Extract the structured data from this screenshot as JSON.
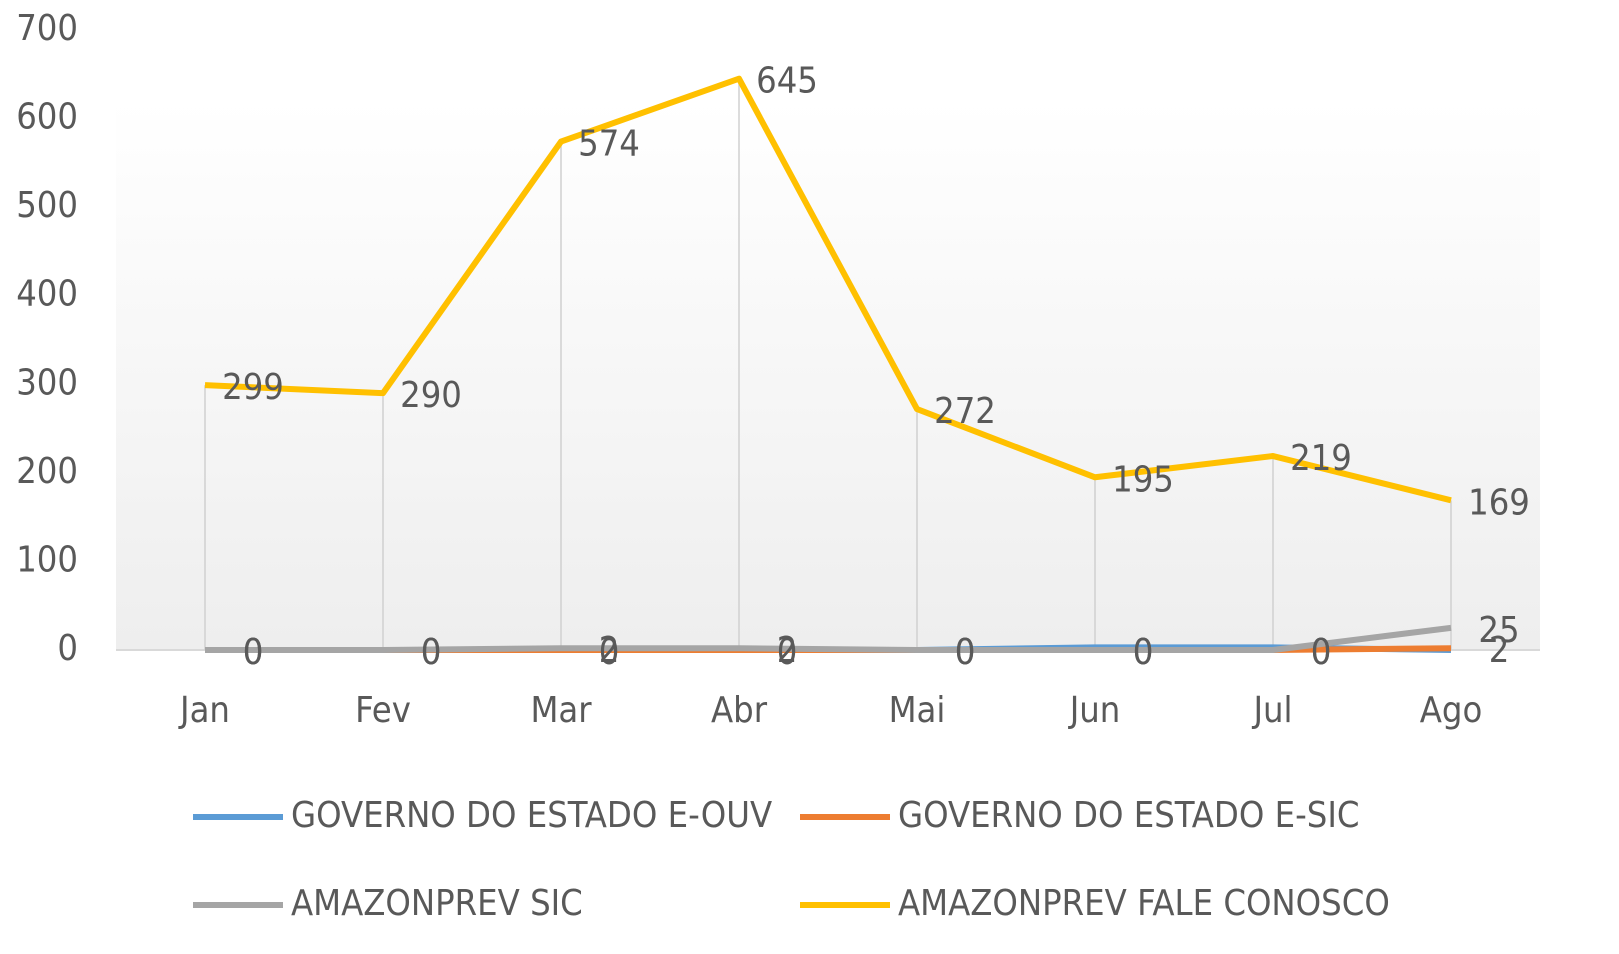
{
  "chart_data": {
    "type": "line",
    "categories": [
      "Jan",
      "Fev",
      "Mar",
      "Abr",
      "Mai",
      "Jun",
      "Jul",
      "Ago"
    ],
    "series": [
      {
        "name": "GOVERNO DO ESTADO E-OUV",
        "color": "#5b9bd5",
        "values": [
          0,
          0,
          0,
          0,
          0,
          3,
          3,
          0
        ],
        "data_labels": false
      },
      {
        "name": "GOVERNO DO ESTADO E-SIC",
        "color": "#ed7d31",
        "values": [
          0,
          0,
          0,
          0,
          0,
          0,
          0,
          2
        ],
        "data_labels": true
      },
      {
        "name": "AMAZONPREV SIC",
        "color": "#a5a5a5",
        "values": [
          0,
          0,
          2,
          2,
          0,
          0,
          0,
          25
        ],
        "data_labels": true
      },
      {
        "name": "AMAZONPREV FALE CONOSCO",
        "color": "#ffc000",
        "values": [
          299,
          290,
          574,
          645,
          272,
          195,
          219,
          169
        ],
        "data_labels": true
      }
    ],
    "ylim": [
      0,
      700
    ],
    "yticks": [
      0,
      100,
      200,
      300,
      400,
      500,
      600,
      700
    ],
    "drop_lines": true,
    "legend": "bottom"
  }
}
